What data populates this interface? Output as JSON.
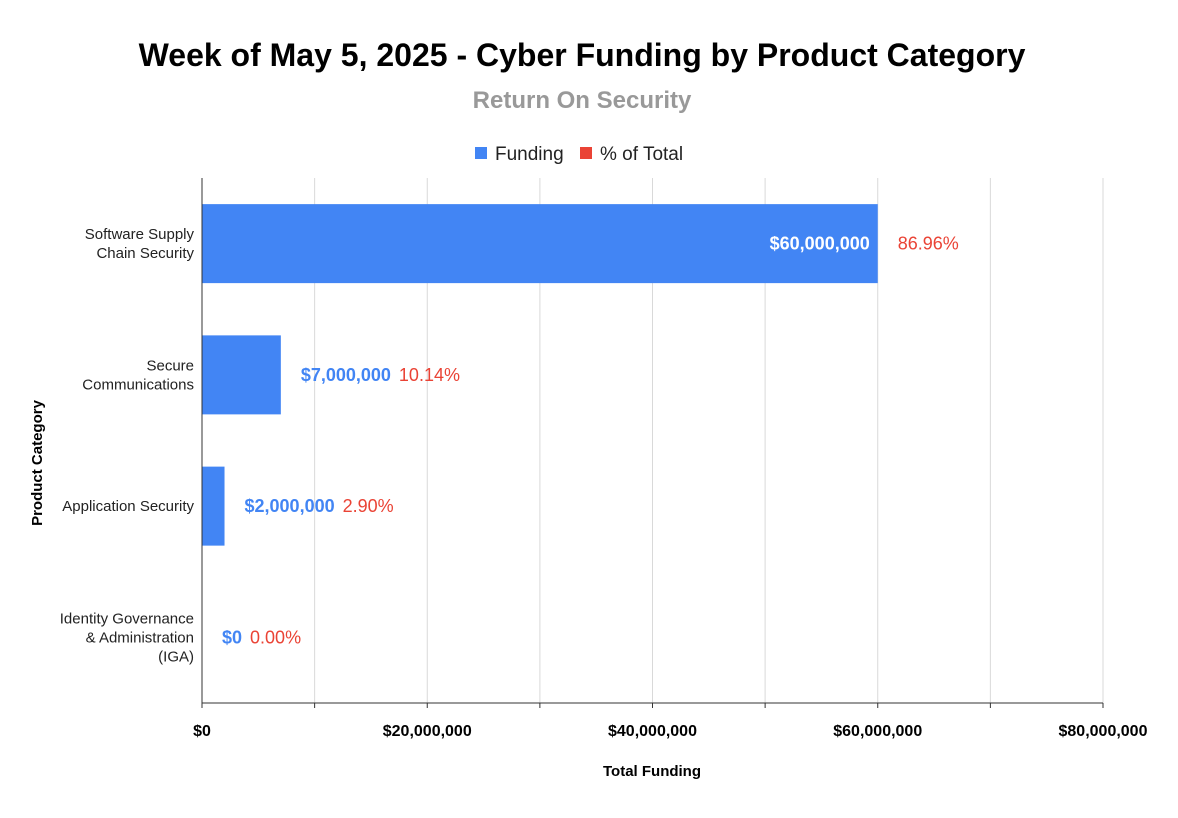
{
  "chart_data": {
    "type": "bar",
    "orientation": "horizontal",
    "title": "Week of May 5, 2025 - Cyber Funding by Product Category",
    "subtitle": "Return On Security",
    "xlabel": "Total Funding",
    "ylabel": "Product Category",
    "xlim": [
      0,
      80000000
    ],
    "x_ticks": [
      0,
      20000000,
      40000000,
      60000000,
      80000000
    ],
    "x_tick_labels": [
      "$0",
      "$20,000,000",
      "$40,000,000",
      "$60,000,000",
      "$80,000,000"
    ],
    "grid": true,
    "legend": {
      "position": "top",
      "entries": [
        "Funding",
        "% of Total"
      ]
    },
    "categories": [
      [
        "Software Supply",
        "Chain Security"
      ],
      [
        "Secure",
        "Communications"
      ],
      [
        "Application Security"
      ],
      [
        "Identity Governance",
        "& Administration",
        "(IGA)"
      ]
    ],
    "series": [
      {
        "name": "Funding",
        "values": [
          60000000,
          7000000,
          2000000,
          0
        ],
        "labels": [
          "$60,000,000",
          "$7,000,000",
          "$2,000,000",
          "$0"
        ]
      },
      {
        "name": "% of Total",
        "values": [
          86.96,
          10.14,
          2.9,
          0.0
        ],
        "labels": [
          "86.96%",
          "10.14%",
          "2.90%",
          "0.00%"
        ]
      }
    ],
    "colors": {
      "funding": "#4285f4",
      "percent": "#ea4335",
      "grid": "#d9d9d9",
      "axis": "#333333"
    }
  }
}
